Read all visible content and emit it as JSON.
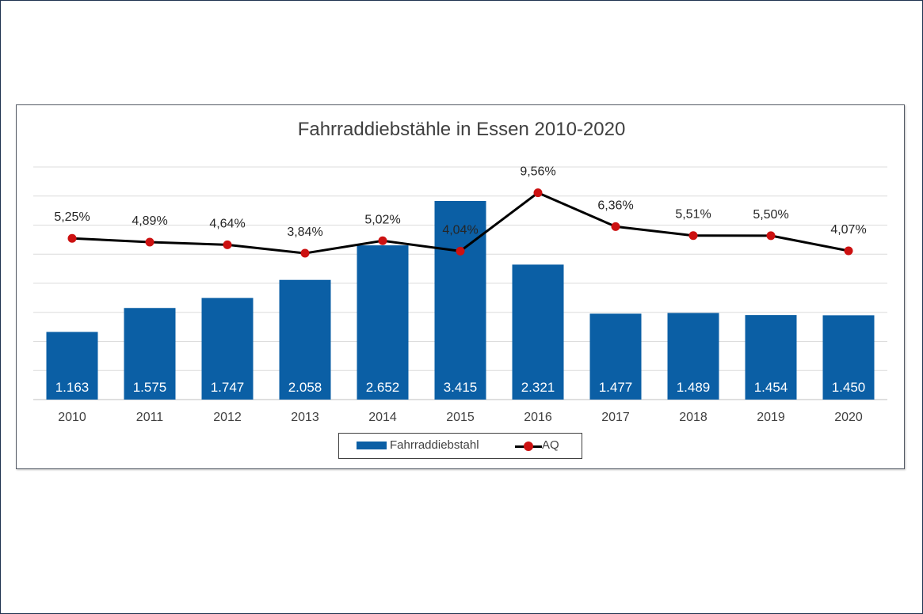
{
  "chart_data": {
    "type": "bar",
    "title": "Fahrraddiebstähle in Essen 2010-2020",
    "categories": [
      "2010",
      "2011",
      "2012",
      "2013",
      "2014",
      "2015",
      "2016",
      "2017",
      "2018",
      "2019",
      "2020"
    ],
    "series": [
      {
        "name": "Fahrraddiebstahl",
        "type": "bar",
        "values": [
          1163,
          1575,
          1747,
          2058,
          2652,
          3415,
          2321,
          1477,
          1489,
          1454,
          1450
        ],
        "labels": [
          "1.163",
          "1.575",
          "1.747",
          "2.058",
          "2.652",
          "3.415",
          "2.321",
          "1.477",
          "1.489",
          "1.454",
          "1.450"
        ],
        "color": "#0b5fa5"
      },
      {
        "name": "AQ",
        "type": "line",
        "values": [
          5.25,
          4.89,
          4.64,
          3.84,
          5.02,
          4.04,
          9.56,
          6.36,
          5.51,
          5.5,
          4.07
        ],
        "labels": [
          "5,25%",
          "4,89%",
          "4,64%",
          "3,84%",
          "5,02%",
          "4,04%",
          "9,56%",
          "6,36%",
          "5,51%",
          "5,50%",
          "4,07%"
        ],
        "line_color": "#000000",
        "marker_color": "#cc1111"
      }
    ],
    "bar_ylim": [
      0,
      4000
    ],
    "line_ylim": [
      -10,
      12
    ],
    "grid": true,
    "legend": "bottom"
  }
}
